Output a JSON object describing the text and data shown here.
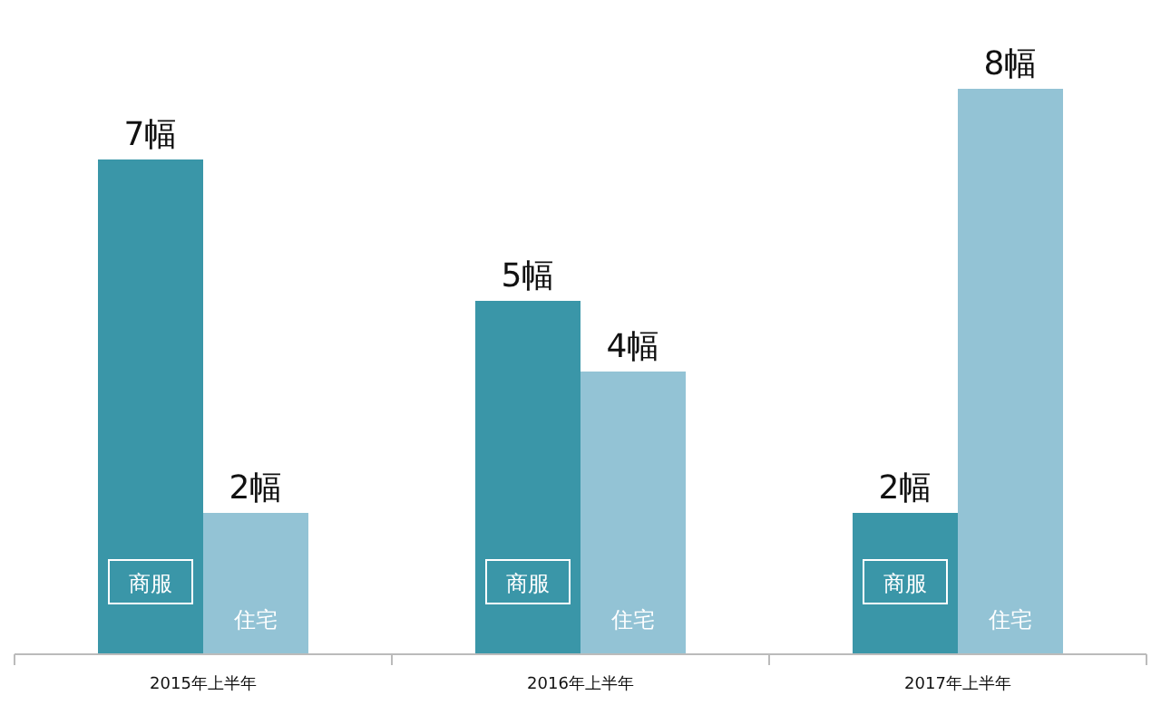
{
  "chart_data": {
    "type": "bar",
    "categories": [
      "2015年上半年",
      "2016年上半年",
      "2017年上半年"
    ],
    "series": [
      {
        "name": "商服",
        "color": "#3a96a8",
        "values": [
          7,
          5,
          2
        ],
        "value_labels": [
          "7幅",
          "5幅",
          "2幅"
        ]
      },
      {
        "name": "住宅",
        "color": "#93c3d5",
        "values": [
          2,
          4,
          8
        ],
        "value_labels": [
          "2幅",
          "4幅",
          "8幅"
        ]
      }
    ]
  }
}
